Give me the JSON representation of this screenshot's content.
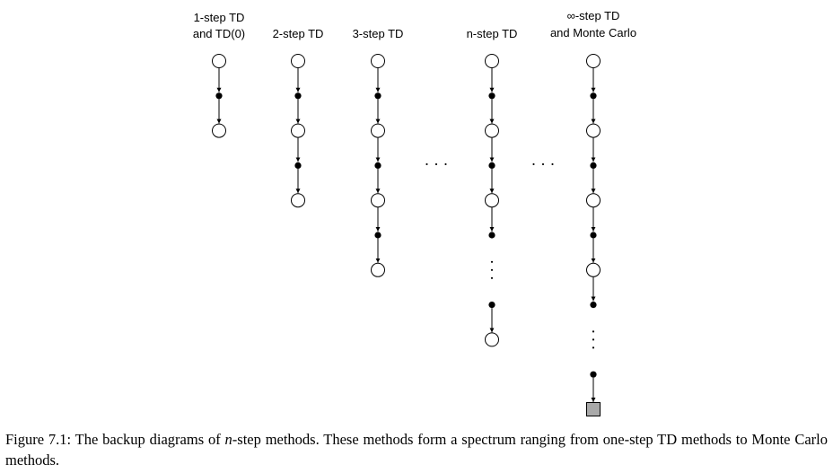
{
  "columns": [
    {
      "label_lines": [
        "1-step TD",
        "and TD(0)"
      ],
      "pattern": [
        "s",
        "a",
        "s"
      ]
    },
    {
      "label_lines": [
        "2-step TD"
      ],
      "pattern": [
        "s",
        "a",
        "s",
        "a",
        "s"
      ]
    },
    {
      "label_lines": [
        "3-step TD"
      ],
      "pattern": [
        "s",
        "a",
        "s",
        "a",
        "s",
        "a",
        "s"
      ]
    },
    {
      "label_lines": [
        "n-step TD"
      ],
      "pattern": [
        "s",
        "a",
        "s",
        "a",
        "s",
        "a",
        "dots",
        "a",
        "s"
      ]
    },
    {
      "label_lines": [
        "∞-step TD",
        "and Monte Carlo"
      ],
      "pattern": [
        "s",
        "a",
        "s",
        "a",
        "s",
        "a",
        "s",
        "a",
        "dots",
        "a",
        "terminal"
      ]
    }
  ],
  "ellipses": [
    "· · ·",
    "· · ·"
  ],
  "caption": {
    "figure_label": "Figure 7.1:",
    "text_before": "The backup diagrams of ",
    "n_symbol": "n",
    "text_after": "-step methods. These methods form a spectrum ranging from one-step TD methods to Monte Carlo methods."
  },
  "colors": {
    "terminal_fill": "#a9a9a9",
    "stroke": "#000000"
  }
}
